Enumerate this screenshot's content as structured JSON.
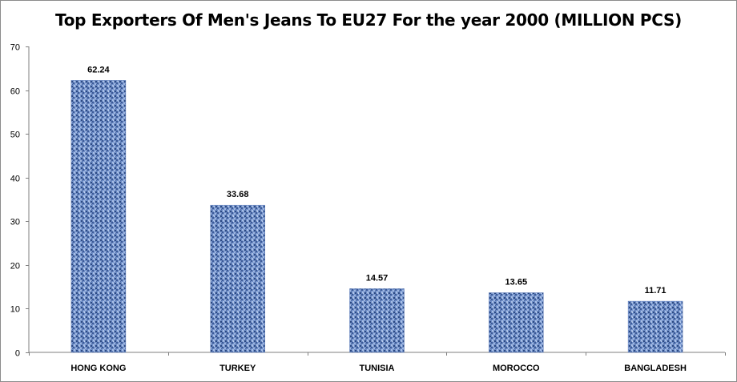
{
  "chart_data": {
    "type": "bar",
    "title": "Top Exporters Of Men's Jeans To EU27 For the year 2000 (MILLION PCS)",
    "categories": [
      "HONG KONG",
      "TURKEY",
      "TUNISIA",
      "MOROCCO",
      "BANGLADESH"
    ],
    "values": [
      62.24,
      33.68,
      14.57,
      13.65,
      11.71
    ],
    "data_labels": [
      "62.24",
      "33.68",
      "14.57",
      "13.65",
      "11.71"
    ],
    "ylim": [
      0,
      70
    ],
    "yticks": [
      "0",
      "10",
      "20",
      "30",
      "40",
      "50",
      "60",
      "70"
    ],
    "xlabel": "",
    "ylabel": "",
    "grid": false,
    "legend": "none",
    "bar_color": "#6f8fc8"
  }
}
